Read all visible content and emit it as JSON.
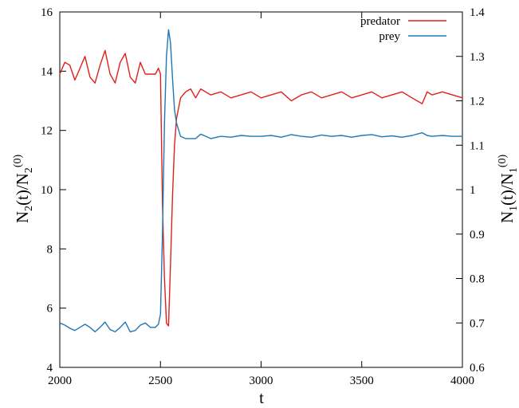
{
  "chart_data": {
    "type": "line",
    "x": [
      2000,
      2025,
      2050,
      2075,
      2100,
      2125,
      2150,
      2175,
      2200,
      2225,
      2250,
      2275,
      2300,
      2325,
      2350,
      2375,
      2400,
      2425,
      2450,
      2475,
      2490,
      2500,
      2510,
      2520,
      2530,
      2540,
      2550,
      2560,
      2570,
      2580,
      2600,
      2625,
      2650,
      2675,
      2700,
      2750,
      2800,
      2850,
      2900,
      2950,
      3000,
      3050,
      3100,
      3150,
      3200,
      3250,
      3300,
      3350,
      3400,
      3450,
      3500,
      3550,
      3600,
      3650,
      3700,
      3750,
      3800,
      3825,
      3850,
      3900,
      3950,
      4000
    ],
    "series": [
      {
        "name": "predator",
        "axis": "left",
        "color": "#e0201b",
        "values": [
          13.9,
          14.3,
          14.2,
          13.7,
          14.1,
          14.5,
          13.8,
          13.6,
          14.2,
          14.7,
          13.9,
          13.6,
          14.3,
          14.6,
          13.8,
          13.6,
          14.3,
          13.9,
          13.9,
          13.9,
          14.1,
          13.9,
          9.5,
          7.0,
          5.5,
          5.4,
          7.5,
          9.8,
          11.5,
          12.4,
          13.1,
          13.3,
          13.4,
          13.1,
          13.4,
          13.2,
          13.3,
          13.1,
          13.2,
          13.3,
          13.1,
          13.2,
          13.3,
          13.0,
          13.2,
          13.3,
          13.1,
          13.2,
          13.3,
          13.1,
          13.2,
          13.3,
          13.1,
          13.2,
          13.3,
          13.1,
          12.9,
          13.3,
          13.2,
          13.3,
          13.2,
          13.1
        ]
      },
      {
        "name": "prey",
        "axis": "right",
        "color": "#1f77b4",
        "values": [
          0.7,
          0.695,
          0.688,
          0.683,
          0.69,
          0.697,
          0.69,
          0.68,
          0.69,
          0.702,
          0.685,
          0.68,
          0.69,
          0.702,
          0.68,
          0.683,
          0.695,
          0.7,
          0.69,
          0.69,
          0.697,
          0.72,
          0.9,
          1.15,
          1.3,
          1.36,
          1.33,
          1.25,
          1.18,
          1.15,
          1.12,
          1.115,
          1.115,
          1.115,
          1.125,
          1.115,
          1.12,
          1.118,
          1.122,
          1.12,
          1.12,
          1.122,
          1.118,
          1.124,
          1.12,
          1.118,
          1.123,
          1.12,
          1.122,
          1.118,
          1.122,
          1.124,
          1.119,
          1.121,
          1.118,
          1.122,
          1.128,
          1.122,
          1.12,
          1.122,
          1.12,
          1.12
        ]
      }
    ],
    "xlabel": "t",
    "ylabel_left": "N2(t)/N2(0)",
    "ylabel_right": "N1(t)/N1(0)",
    "xlim": [
      2000,
      4000
    ],
    "ylim_left": [
      4,
      16
    ],
    "ylim_right": [
      0.6,
      1.4
    ],
    "xticks": [
      2000,
      2500,
      3000,
      3500,
      4000
    ],
    "yticks_left": [
      4,
      6,
      8,
      10,
      12,
      14,
      16
    ],
    "yticks_right": [
      0.6,
      0.7,
      0.8,
      0.9,
      1,
      1.1,
      1.2,
      1.3,
      1.4
    ],
    "xtick_labels": [
      "2000",
      "2500",
      "3000",
      "3500",
      "4000"
    ],
    "ytick_labels_left": [
      "4",
      "6",
      "8",
      "10",
      "12",
      "14",
      "16"
    ],
    "ytick_labels_right": [
      "0.6",
      "0.7",
      "0.8",
      "0.9",
      "1",
      "1.1",
      "1.2",
      "1.3",
      "1.4"
    ],
    "grid": false,
    "legend_position": "top-right"
  }
}
